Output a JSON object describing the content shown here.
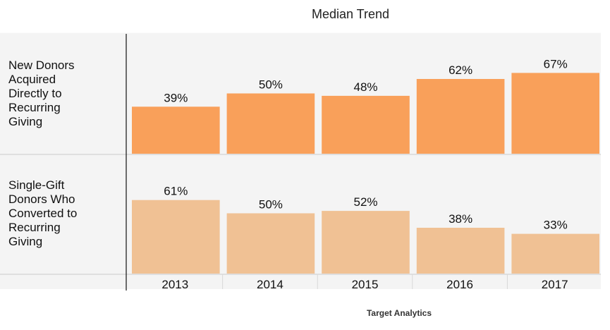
{
  "chart_data": {
    "type": "bar",
    "title": "Median Trend",
    "categories": [
      "2013",
      "2014",
      "2015",
      "2016",
      "2017"
    ],
    "value_format": "percent",
    "ylim": [
      0,
      80
    ],
    "series": [
      {
        "name": "New Donors Acquired Directly to Recurring Giving",
        "label_lines": [
          "New Donors",
          "Acquired",
          "Directly to",
          "Recurring",
          "Giving"
        ],
        "values": [
          39,
          50,
          48,
          62,
          67
        ],
        "labels": [
          "39%",
          "50%",
          "48%",
          "62%",
          "67%"
        ],
        "color": "#F9A05A"
      },
      {
        "name": "Single-Gift Donors Who Converted to Recurring Giving",
        "label_lines": [
          "Single-Gift",
          "Donors Who",
          "Converted to",
          "Recurring",
          "Giving"
        ],
        "values": [
          61,
          50,
          52,
          38,
          33
        ],
        "labels": [
          "61%",
          "50%",
          "52%",
          "38%",
          "33%"
        ],
        "color": "#F0C194"
      }
    ],
    "grid": false,
    "legend": "row labels at left"
  },
  "footer": {
    "source": "Target Analytics"
  },
  "colors": {
    "background": "#ffffff",
    "panel": "#F4F4F4",
    "separator": "#D8D8D8",
    "axis": "#111111"
  }
}
